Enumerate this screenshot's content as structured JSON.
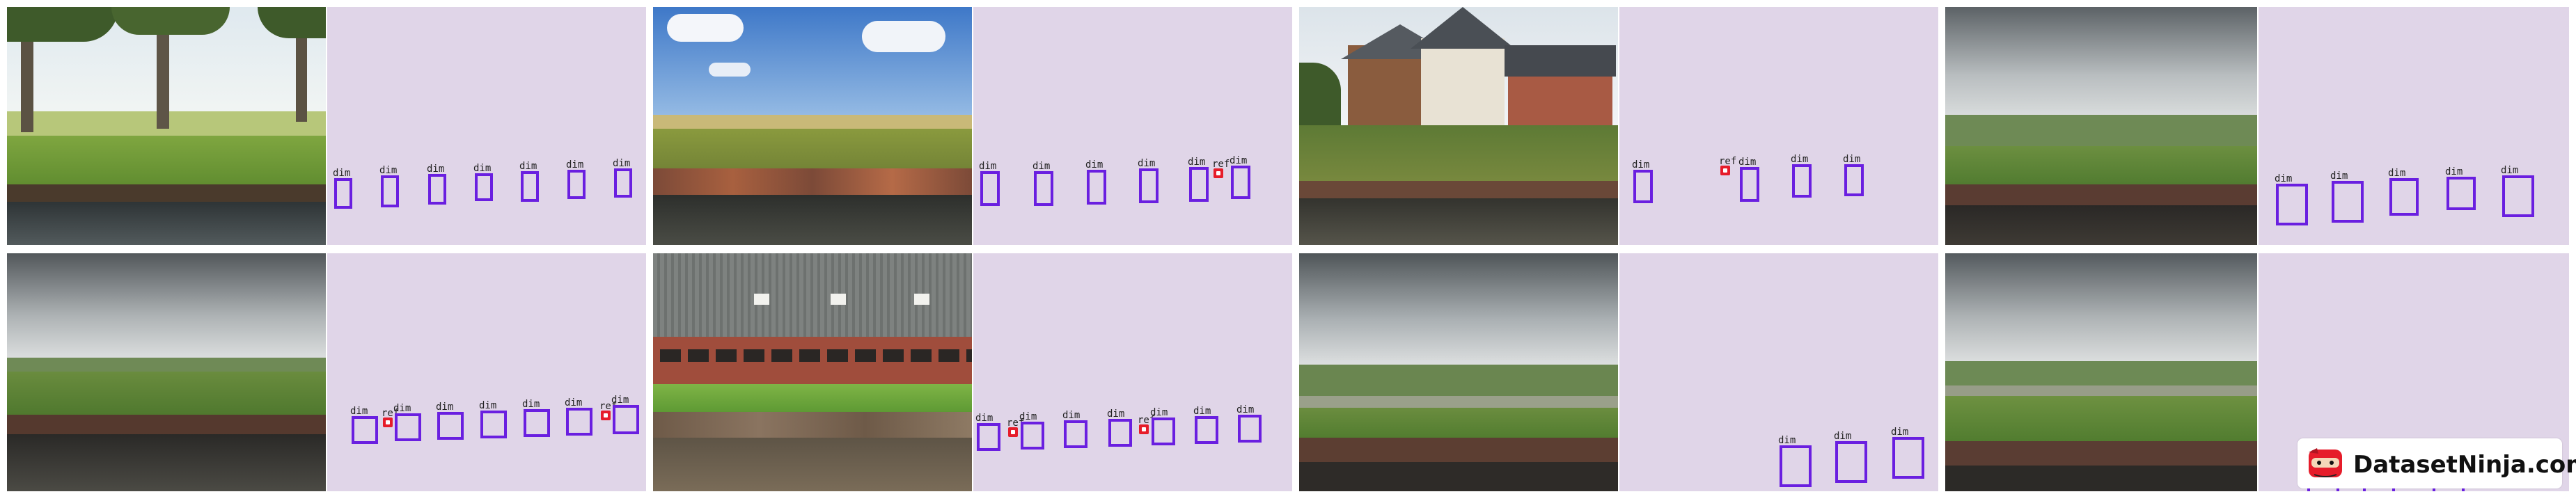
{
  "watermark": {
    "text": "DatasetNinja.com"
  },
  "labels": {
    "dim": "dim",
    "ref": "ref"
  },
  "colors": {
    "box": "#6a1fe0",
    "ref_marker": "#e61c2a",
    "panel_bg": "#e0d5e8"
  },
  "tiles": [
    {
      "name": "river-trees",
      "dims": 7,
      "refs": 0
    },
    {
      "name": "river-field",
      "dims": 7,
      "refs": 1
    },
    {
      "name": "river-houses",
      "dims": 4,
      "refs": 1
    },
    {
      "name": "meadow-canal",
      "dims": 5,
      "refs": 0
    },
    {
      "name": "cloudy-bank",
      "dims": 7,
      "refs": 2
    },
    {
      "name": "barn-wall",
      "dims": 7,
      "refs": 2
    },
    {
      "name": "polder-canal",
      "dims": 3,
      "refs": 0
    },
    {
      "name": "polder-grass",
      "dims": 3,
      "refs": 0
    }
  ]
}
